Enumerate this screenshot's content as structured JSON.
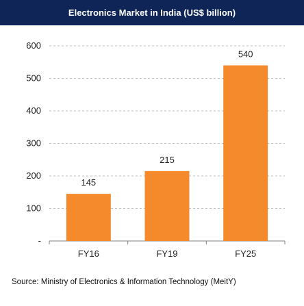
{
  "title": "Electronics Market in India (US$ billion)",
  "source": "Source: Ministry of Electronics & Information Technology (MeitY)",
  "colors": {
    "header_bg": "#0f2557",
    "bar": "#f58a2c",
    "grid": "#bfbfbf",
    "axis": "#7f7f7f"
  },
  "chart_data": {
    "type": "bar",
    "title": "Electronics Market in India (US$ billion)",
    "categories": [
      "FY16",
      "FY19",
      "FY25"
    ],
    "values": [
      145,
      215,
      540
    ],
    "data_labels": [
      "145",
      "215",
      "540"
    ],
    "y_ticks": [
      "-",
      "100",
      "200",
      "300",
      "400",
      "500",
      "600"
    ],
    "ylim": [
      0,
      600
    ],
    "grid": true,
    "legend": "none"
  }
}
